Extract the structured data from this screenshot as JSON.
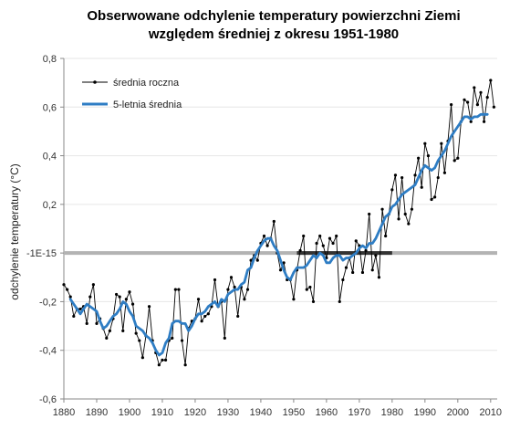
{
  "chart_data": {
    "type": "line",
    "title_line1": "Obserwowane odchylenie temperatury powierzchni Ziemi",
    "title_line2": "względem średniej z okresu 1951-1980",
    "ylabel": "odchylenie temperatury (°C)",
    "xlabel": "",
    "xlim": [
      1880,
      2012
    ],
    "ylim": [
      -0.6,
      0.8
    ],
    "x_ticks": [
      "1880",
      "1890",
      "1900",
      "1910",
      "1920",
      "1930",
      "1940",
      "1950",
      "1960",
      "1970",
      "1980",
      "1990",
      "2000",
      "2010"
    ],
    "y_ticks": [
      "0,8",
      "0,6",
      "0,4",
      "0,2",
      "-1E-15",
      "-0,2",
      "-0,4",
      "-0,6"
    ],
    "y_tick_values": [
      0.8,
      0.6,
      0.4,
      0.2,
      0.0,
      -0.2,
      -0.4,
      -0.6
    ],
    "legend_position": "top-left",
    "colors": {
      "annual": "#000000",
      "smooth": "#2e7dc4",
      "zero_line": "#b3b3b3",
      "base_period": "#333333"
    },
    "series": [
      {
        "name": "średnia roczna",
        "x": [
          1880,
          1881,
          1882,
          1883,
          1884,
          1885,
          1886,
          1887,
          1888,
          1889,
          1890,
          1891,
          1892,
          1893,
          1894,
          1895,
          1896,
          1897,
          1898,
          1899,
          1900,
          1901,
          1902,
          1903,
          1904,
          1905,
          1906,
          1907,
          1908,
          1909,
          1910,
          1911,
          1912,
          1913,
          1914,
          1915,
          1916,
          1917,
          1918,
          1919,
          1920,
          1921,
          1922,
          1923,
          1924,
          1925,
          1926,
          1927,
          1928,
          1929,
          1930,
          1931,
          1932,
          1933,
          1934,
          1935,
          1936,
          1937,
          1938,
          1939,
          1940,
          1941,
          1942,
          1943,
          1944,
          1945,
          1946,
          1947,
          1948,
          1949,
          1950,
          1951,
          1952,
          1953,
          1954,
          1955,
          1956,
          1957,
          1958,
          1959,
          1960,
          1961,
          1962,
          1963,
          1964,
          1965,
          1966,
          1967,
          1968,
          1969,
          1970,
          1971,
          1972,
          1973,
          1974,
          1975,
          1976,
          1977,
          1978,
          1979,
          1980,
          1981,
          1982,
          1983,
          1984,
          1985,
          1986,
          1987,
          1988,
          1989,
          1990,
          1991,
          1992,
          1993,
          1994,
          1995,
          1996,
          1997,
          1998,
          1999,
          2000,
          2001,
          2002,
          2003,
          2004,
          2005,
          2006,
          2007,
          2008,
          2009,
          2010,
          2011
        ],
        "y": [
          -0.13,
          -0.15,
          -0.18,
          -0.26,
          -0.23,
          -0.23,
          -0.22,
          -0.29,
          -0.18,
          -0.13,
          -0.29,
          -0.27,
          -0.31,
          -0.35,
          -0.32,
          -0.27,
          -0.17,
          -0.18,
          -0.32,
          -0.19,
          -0.16,
          -0.21,
          -0.33,
          -0.36,
          -0.43,
          -0.34,
          -0.22,
          -0.36,
          -0.41,
          -0.46,
          -0.44,
          -0.44,
          -0.36,
          -0.35,
          -0.15,
          -0.15,
          -0.36,
          -0.46,
          -0.31,
          -0.28,
          -0.27,
          -0.19,
          -0.28,
          -0.26,
          -0.25,
          -0.22,
          -0.11,
          -0.22,
          -0.2,
          -0.35,
          -0.15,
          -0.1,
          -0.14,
          -0.26,
          -0.14,
          -0.19,
          -0.15,
          -0.03,
          -0.01,
          -0.03,
          0.04,
          0.07,
          0.03,
          0.06,
          0.13,
          0.0,
          -0.07,
          -0.04,
          -0.11,
          -0.11,
          -0.19,
          -0.07,
          0.01,
          0.07,
          -0.15,
          -0.14,
          -0.2,
          0.04,
          0.07,
          0.03,
          -0.02,
          0.06,
          0.04,
          0.07,
          -0.2,
          -0.11,
          -0.06,
          -0.02,
          -0.08,
          0.05,
          0.03,
          -0.08,
          0.01,
          0.16,
          -0.07,
          -0.01,
          -0.1,
          0.18,
          0.07,
          0.16,
          0.26,
          0.32,
          0.14,
          0.31,
          0.16,
          0.12,
          0.18,
          0.32,
          0.39,
          0.27,
          0.45,
          0.4,
          0.22,
          0.23,
          0.31,
          0.45,
          0.33,
          0.46,
          0.61,
          0.38,
          0.39,
          0.54,
          0.63,
          0.62,
          0.54,
          0.68,
          0.61,
          0.66,
          0.54,
          0.64,
          0.71,
          0.6
        ]
      },
      {
        "name": "5-letnia średnia",
        "x": [
          1882,
          1883,
          1884,
          1885,
          1886,
          1887,
          1888,
          1889,
          1890,
          1891,
          1892,
          1893,
          1894,
          1895,
          1896,
          1897,
          1898,
          1899,
          1900,
          1901,
          1902,
          1903,
          1904,
          1905,
          1906,
          1907,
          1908,
          1909,
          1910,
          1911,
          1912,
          1913,
          1914,
          1915,
          1916,
          1917,
          1918,
          1919,
          1920,
          1921,
          1922,
          1923,
          1924,
          1925,
          1926,
          1927,
          1928,
          1929,
          1930,
          1931,
          1932,
          1933,
          1934,
          1935,
          1936,
          1937,
          1938,
          1939,
          1940,
          1941,
          1942,
          1943,
          1944,
          1945,
          1946,
          1947,
          1948,
          1949,
          1950,
          1951,
          1952,
          1953,
          1954,
          1955,
          1956,
          1957,
          1958,
          1959,
          1960,
          1961,
          1962,
          1963,
          1964,
          1965,
          1966,
          1967,
          1968,
          1969,
          1970,
          1971,
          1972,
          1973,
          1974,
          1975,
          1976,
          1977,
          1978,
          1979,
          1980,
          1981,
          1982,
          1983,
          1984,
          1985,
          1986,
          1987,
          1988,
          1989,
          1990,
          1991,
          1992,
          1993,
          1994,
          1995,
          1996,
          1997,
          1998,
          1999,
          2000,
          2001,
          2002,
          2003,
          2004,
          2005,
          2006,
          2007,
          2008,
          2009
        ],
        "y": [
          -0.19,
          -0.21,
          -0.23,
          -0.25,
          -0.23,
          -0.21,
          -0.22,
          -0.23,
          -0.24,
          -0.28,
          -0.31,
          -0.3,
          -0.28,
          -0.26,
          -0.25,
          -0.23,
          -0.2,
          -0.21,
          -0.24,
          -0.26,
          -0.3,
          -0.31,
          -0.32,
          -0.34,
          -0.35,
          -0.37,
          -0.4,
          -0.42,
          -0.41,
          -0.37,
          -0.35,
          -0.29,
          -0.28,
          -0.28,
          -0.29,
          -0.29,
          -0.32,
          -0.3,
          -0.27,
          -0.25,
          -0.25,
          -0.24,
          -0.22,
          -0.21,
          -0.2,
          -0.22,
          -0.19,
          -0.2,
          -0.17,
          -0.16,
          -0.15,
          -0.15,
          -0.13,
          -0.12,
          -0.07,
          -0.06,
          -0.02,
          0.01,
          0.03,
          0.05,
          0.06,
          0.06,
          0.03,
          0.01,
          -0.03,
          -0.07,
          -0.1,
          -0.11,
          -0.08,
          -0.06,
          -0.06,
          -0.06,
          -0.05,
          -0.03,
          -0.01,
          -0.02,
          0.0,
          -0.01,
          -0.04,
          -0.04,
          -0.02,
          -0.01,
          -0.01,
          -0.03,
          -0.02,
          -0.02,
          -0.01,
          0.0,
          0.02,
          0.03,
          0.02,
          0.04,
          0.04,
          0.06,
          0.09,
          0.12,
          0.15,
          0.16,
          0.19,
          0.2,
          0.22,
          0.24,
          0.25,
          0.26,
          0.27,
          0.28,
          0.31,
          0.34,
          0.36,
          0.35,
          0.34,
          0.35,
          0.38,
          0.4,
          0.42,
          0.45,
          0.48,
          0.5,
          0.52,
          0.54,
          0.56,
          0.56,
          0.55,
          0.56,
          0.56,
          0.57,
          0.57,
          0.57
        ]
      }
    ],
    "base_period": [
      1951,
      1980
    ]
  }
}
